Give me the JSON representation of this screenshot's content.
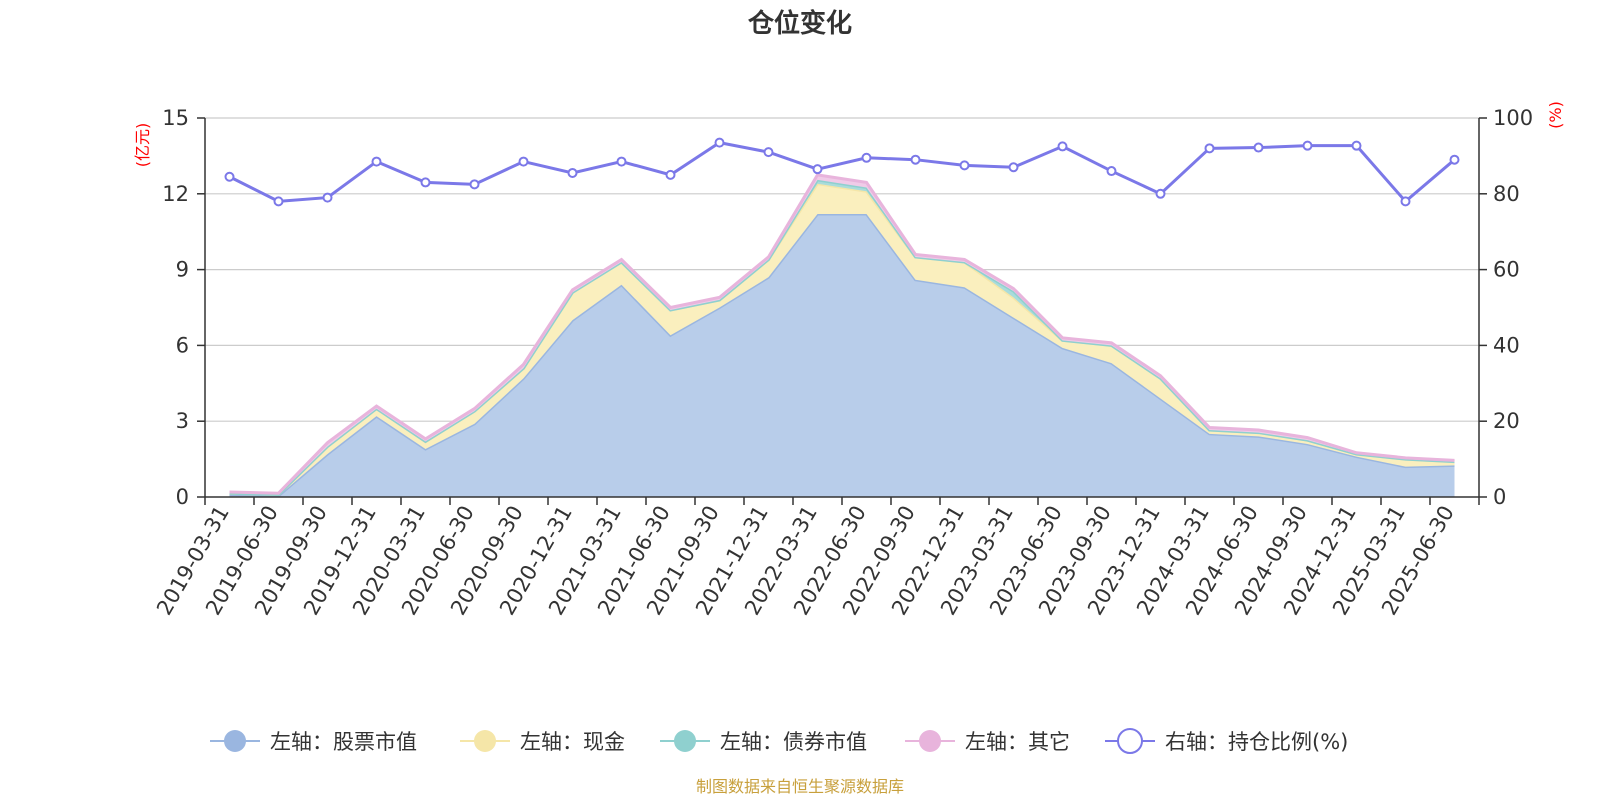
{
  "title": "仓位变化",
  "source": "制图数据来自恒生聚源数据库",
  "chart_data": {
    "type": "area",
    "title": "仓位变化",
    "x": [
      "2019-03-31",
      "2019-06-30",
      "2019-09-30",
      "2019-12-31",
      "2020-03-31",
      "2020-06-30",
      "2020-09-30",
      "2020-12-31",
      "2021-03-31",
      "2021-06-30",
      "2021-09-30",
      "2021-12-31",
      "2022-03-31",
      "2022-06-30",
      "2022-09-30",
      "2022-12-31",
      "2023-03-31",
      "2023-06-30",
      "2023-09-30",
      "2023-12-31",
      "2024-03-31",
      "2024-06-30",
      "2024-09-30",
      "2024-12-31",
      "2025-03-31",
      "2025-06-30"
    ],
    "left_axis": {
      "unit": "(亿元)",
      "ylim": [
        0,
        15
      ],
      "ticks": [
        "0",
        "3",
        "6",
        "9",
        "12",
        "15"
      ]
    },
    "right_axis": {
      "unit": "(%)",
      "ylim": [
        0,
        100
      ],
      "ticks": [
        "0",
        "20",
        "40",
        "60",
        "80",
        "100"
      ]
    },
    "grid": true,
    "legend_position": "bottom",
    "series": [
      {
        "name": "左轴：股票市值",
        "axis": "left",
        "stacked": true,
        "color": "#9ab6e0",
        "fill": "#b8cdea",
        "values": [
          0.1,
          0.05,
          1.7,
          3.2,
          1.9,
          2.9,
          4.7,
          7.0,
          8.4,
          6.4,
          7.5,
          8.7,
          11.2,
          11.2,
          8.6,
          8.3,
          7.1,
          5.9,
          5.3,
          3.9,
          2.5,
          2.4,
          2.1,
          1.6,
          1.2,
          1.25
        ]
      },
      {
        "name": "左轴：现金",
        "axis": "left",
        "stacked": true,
        "color": "#f5e6a8",
        "fill": "#faefbe",
        "values": [
          0.05,
          0.05,
          0.3,
          0.3,
          0.3,
          0.5,
          0.4,
          1.1,
          0.9,
          1.0,
          0.3,
          0.7,
          1.2,
          0.9,
          0.9,
          1.0,
          0.8,
          0.3,
          0.7,
          0.8,
          0.15,
          0.15,
          0.15,
          0.1,
          0.3,
          0.15
        ]
      },
      {
        "name": "左轴：债券市值",
        "axis": "left",
        "stacked": true,
        "color": "#8fd0cf",
        "fill": "#a9dcdb",
        "values": [
          0,
          0,
          0,
          0,
          0,
          0,
          0,
          0,
          0,
          0,
          0,
          0,
          0.15,
          0.15,
          0,
          0,
          0.25,
          0,
          0,
          0,
          0,
          0,
          0,
          0,
          0,
          0
        ]
      },
      {
        "name": "左轴：其它",
        "axis": "left",
        "stacked": true,
        "color": "#e8b4dc",
        "fill": "#f0cbe8",
        "values": [
          0.05,
          0.05,
          0.15,
          0.1,
          0.1,
          0.1,
          0.15,
          0.1,
          0.1,
          0.1,
          0.1,
          0.1,
          0.2,
          0.2,
          0.1,
          0.1,
          0.1,
          0.1,
          0.1,
          0.1,
          0.1,
          0.1,
          0.1,
          0.05,
          0.05,
          0.05
        ]
      },
      {
        "name": "右轴：持仓比例(%)",
        "axis": "right",
        "type": "line",
        "color": "#7b78e8",
        "values": [
          84.5,
          78.0,
          79.0,
          88.5,
          83.0,
          82.5,
          88.5,
          85.5,
          88.5,
          85.0,
          93.5,
          91.0,
          86.5,
          89.5,
          89.0,
          87.5,
          87.0,
          92.5,
          86.0,
          80.0,
          92.0,
          92.2,
          92.7,
          92.7,
          78.0,
          89.0
        ]
      }
    ]
  }
}
